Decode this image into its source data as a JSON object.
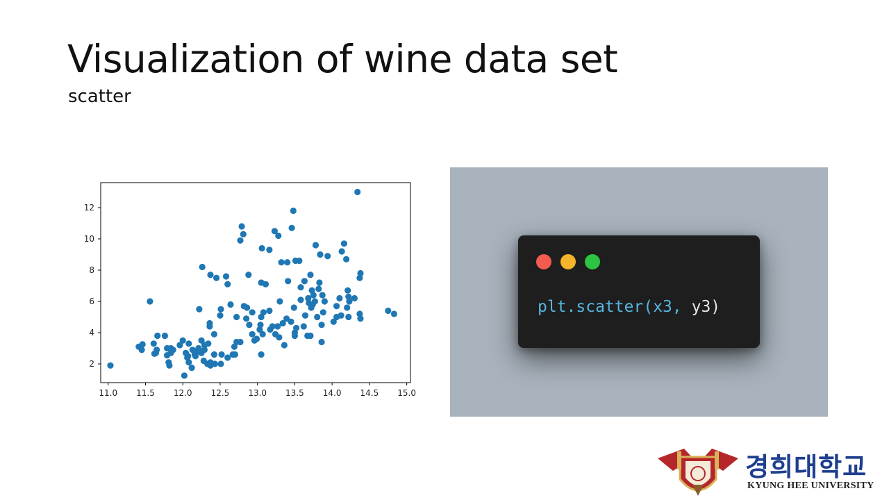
{
  "slide": {
    "title": "Visualization of wine data set",
    "subtitle": "scatter"
  },
  "code_window": {
    "code_function": "plt.scatter",
    "code_open": "(",
    "code_arg1": "x3",
    "code_comma": ", ",
    "code_arg2": "y3",
    "code_close": ")",
    "dot_colors": [
      "#f15b50",
      "#f5b52a",
      "#2dc441"
    ],
    "code_color_function": "#56b6e0",
    "code_color_arg": "#e6e6e6",
    "panel_color": "#a9b3bd",
    "window_color": "#1e1e1e"
  },
  "logo": {
    "korean": "경희대학교",
    "english": "KYUNG HEE UNIVERSITY"
  },
  "chart_data": {
    "type": "scatter",
    "title": "",
    "xlabel": "",
    "ylabel": "",
    "xlim": [
      10.9,
      15.05
    ],
    "ylim": [
      0.8,
      13.6
    ],
    "xticks": [
      "11.0",
      "11.5",
      "12.0",
      "12.5",
      "13.0",
      "13.5",
      "14.0",
      "14.5",
      "15.0"
    ],
    "yticks": [
      "2",
      "4",
      "6",
      "8",
      "10",
      "12"
    ],
    "grid": false,
    "color": "#1f77b4",
    "points": [
      [
        11.03,
        1.9
      ],
      [
        11.41,
        3.1
      ],
      [
        11.45,
        2.9
      ],
      [
        11.46,
        3.25
      ],
      [
        11.56,
        6.0
      ],
      [
        11.61,
        3.3
      ],
      [
        11.62,
        2.65
      ],
      [
        11.64,
        2.7
      ],
      [
        11.66,
        3.8
      ],
      [
        11.65,
        2.9
      ],
      [
        11.76,
        3.8
      ],
      [
        11.79,
        2.55
      ],
      [
        11.81,
        2.1
      ],
      [
        11.82,
        1.9
      ],
      [
        11.79,
        3.0
      ],
      [
        11.84,
        2.7
      ],
      [
        11.84,
        3.0
      ],
      [
        11.87,
        2.9
      ],
      [
        11.96,
        3.2
      ],
      [
        12.0,
        3.5
      ],
      [
        12.02,
        1.25
      ],
      [
        12.04,
        2.7
      ],
      [
        12.06,
        2.4
      ],
      [
        12.07,
        2.5
      ],
      [
        12.08,
        2.1
      ],
      [
        12.08,
        3.3
      ],
      [
        12.12,
        1.75
      ],
      [
        12.13,
        2.9
      ],
      [
        12.16,
        2.6
      ],
      [
        12.17,
        2.5
      ],
      [
        12.2,
        2.8
      ],
      [
        12.21,
        3.0
      ],
      [
        12.22,
        5.5
      ],
      [
        12.25,
        2.7
      ],
      [
        12.25,
        3.5
      ],
      [
        12.26,
        8.2
      ],
      [
        12.28,
        2.2
      ],
      [
        12.29,
        3.2
      ],
      [
        12.29,
        2.9
      ],
      [
        12.33,
        2.0
      ],
      [
        12.34,
        3.3
      ],
      [
        12.36,
        4.4
      ],
      [
        12.37,
        2.1
      ],
      [
        12.37,
        1.9
      ],
      [
        12.36,
        4.6
      ],
      [
        12.37,
        7.7
      ],
      [
        12.42,
        2.6
      ],
      [
        12.43,
        2.0
      ],
      [
        12.42,
        3.9
      ],
      [
        12.45,
        7.5
      ],
      [
        12.5,
        5.1
      ],
      [
        12.51,
        2.0
      ],
      [
        12.51,
        5.5
      ],
      [
        12.52,
        2.6
      ],
      [
        12.58,
        7.6
      ],
      [
        12.6,
        7.1
      ],
      [
        12.6,
        2.4
      ],
      [
        12.64,
        5.8
      ],
      [
        12.67,
        2.6
      ],
      [
        12.69,
        3.1
      ],
      [
        12.7,
        2.6
      ],
      [
        12.72,
        3.4
      ],
      [
        12.72,
        5.0
      ],
      [
        12.77,
        9.9
      ],
      [
        12.77,
        3.4
      ],
      [
        12.79,
        10.8
      ],
      [
        12.81,
        10.3
      ],
      [
        12.82,
        5.7
      ],
      [
        12.85,
        4.9
      ],
      [
        12.86,
        5.6
      ],
      [
        12.88,
        7.7
      ],
      [
        12.89,
        4.5
      ],
      [
        12.93,
        3.9
      ],
      [
        12.93,
        5.3
      ],
      [
        12.96,
        3.5
      ],
      [
        12.99,
        3.6
      ],
      [
        13.03,
        4.2
      ],
      [
        13.04,
        4.5
      ],
      [
        13.05,
        2.6
      ],
      [
        13.05,
        5.0
      ],
      [
        13.05,
        7.2
      ],
      [
        13.06,
        9.4
      ],
      [
        13.07,
        3.9
      ],
      [
        13.08,
        5.3
      ],
      [
        13.11,
        7.1
      ],
      [
        13.16,
        9.3
      ],
      [
        13.16,
        5.4
      ],
      [
        13.17,
        4.2
      ],
      [
        13.2,
        4.4
      ],
      [
        13.23,
        10.5
      ],
      [
        13.24,
        3.9
      ],
      [
        13.27,
        4.4
      ],
      [
        13.28,
        10.2
      ],
      [
        13.29,
        3.7
      ],
      [
        13.3,
        6.0
      ],
      [
        13.32,
        8.5
      ],
      [
        13.34,
        4.6
      ],
      [
        13.36,
        3.2
      ],
      [
        13.39,
        4.9
      ],
      [
        13.4,
        8.5
      ],
      [
        13.41,
        7.3
      ],
      [
        13.45,
        4.7
      ],
      [
        13.46,
        10.7
      ],
      [
        13.48,
        11.8
      ],
      [
        13.49,
        5.6
      ],
      [
        13.5,
        3.8
      ],
      [
        13.5,
        4.0
      ],
      [
        13.51,
        8.6
      ],
      [
        13.52,
        4.3
      ],
      [
        13.56,
        8.6
      ],
      [
        13.58,
        6.1
      ],
      [
        13.58,
        6.9
      ],
      [
        13.62,
        4.4
      ],
      [
        13.63,
        7.3
      ],
      [
        13.64,
        5.1
      ],
      [
        13.67,
        3.8
      ],
      [
        13.68,
        6.2
      ],
      [
        13.69,
        5.9
      ],
      [
        13.71,
        3.8
      ],
      [
        13.71,
        7.7
      ],
      [
        13.72,
        5.6
      ],
      [
        13.73,
        6.7
      ],
      [
        13.74,
        5.8
      ],
      [
        13.75,
        6.4
      ],
      [
        13.77,
        6.0
      ],
      [
        13.78,
        9.6
      ],
      [
        13.8,
        5.0
      ],
      [
        13.82,
        6.8
      ],
      [
        13.83,
        7.2
      ],
      [
        13.84,
        9.0
      ],
      [
        13.86,
        3.4
      ],
      [
        13.86,
        4.5
      ],
      [
        13.87,
        6.4
      ],
      [
        13.88,
        5.3
      ],
      [
        13.9,
        6.0
      ],
      [
        13.94,
        8.9
      ],
      [
        14.02,
        4.7
      ],
      [
        14.06,
        5.7
      ],
      [
        14.06,
        5.0
      ],
      [
        14.1,
        6.2
      ],
      [
        14.12,
        5.1
      ],
      [
        14.13,
        9.2
      ],
      [
        14.16,
        9.7
      ],
      [
        14.19,
        8.7
      ],
      [
        14.2,
        5.6
      ],
      [
        14.21,
        6.7
      ],
      [
        14.22,
        5.0
      ],
      [
        14.22,
        6.3
      ],
      [
        14.23,
        6.0
      ],
      [
        14.3,
        6.2
      ],
      [
        14.34,
        13.0
      ],
      [
        14.37,
        5.2
      ],
      [
        14.37,
        7.5
      ],
      [
        14.38,
        4.9
      ],
      [
        14.38,
        7.8
      ],
      [
        14.75,
        5.4
      ],
      [
        14.83,
        5.2
      ]
    ]
  }
}
